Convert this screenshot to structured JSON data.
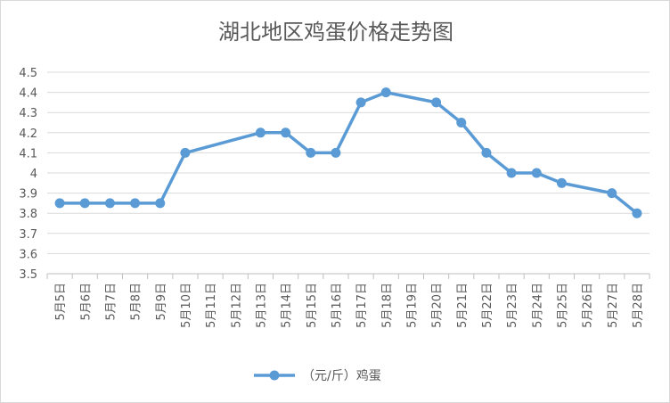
{
  "chart_data": {
    "type": "line",
    "title": "湖北地区鸡蛋价格走势图",
    "xlabel": "",
    "ylabel": "",
    "ylim": [
      3.5,
      4.5
    ],
    "yticks": [
      "3.5",
      "3.6",
      "3.7",
      "3.8",
      "3.9",
      "4",
      "4.1",
      "4.2",
      "4.3",
      "4.4",
      "4.5"
    ],
    "grid": true,
    "legend_position": "bottom",
    "categories": [
      "5月5日",
      "5月6日",
      "5月7日",
      "5月8日",
      "5月9日",
      "5月10日",
      "5月11日",
      "5月12日",
      "5月13日",
      "5月14日",
      "5月15日",
      "5月16日",
      "5月17日",
      "5月18日",
      "5月19日",
      "5月20日",
      "5月21日",
      "5月22日",
      "5月23日",
      "5月24日",
      "5月25日",
      "5月26日",
      "5月27日",
      "5月28日"
    ],
    "series": [
      {
        "name": "（元/斤）鸡蛋",
        "color": "#5b9bd5",
        "values": [
          3.85,
          3.85,
          3.85,
          3.85,
          3.85,
          4.1,
          null,
          null,
          4.2,
          4.2,
          4.1,
          4.1,
          4.35,
          4.4,
          null,
          4.35,
          4.25,
          4.1,
          4.0,
          4.0,
          3.95,
          null,
          3.9,
          3.8
        ]
      }
    ]
  }
}
